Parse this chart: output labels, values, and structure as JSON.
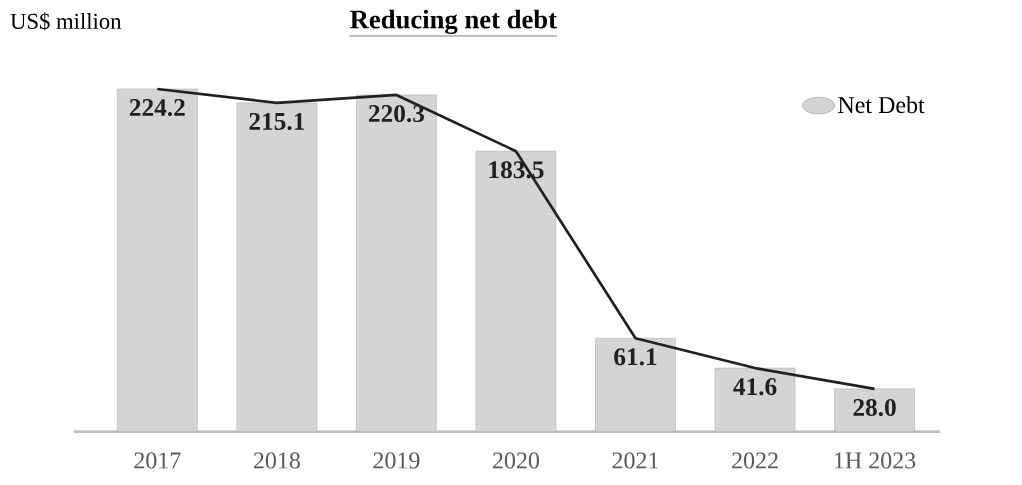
{
  "chart_data": {
    "type": "bar",
    "title": "Reducing net debt",
    "ylabel": "US$ million",
    "categories": [
      "2017",
      "2018",
      "2019",
      "2020",
      "2021",
      "2022",
      "1H 2023"
    ],
    "series": [
      {
        "name": "Net Debt",
        "color": "#d4d4d4",
        "values": [
          224.2,
          215.1,
          220.3,
          183.5,
          61.1,
          41.6,
          28.0
        ],
        "value_labels": [
          "224.2",
          "215.1",
          "220.3",
          "183.5",
          "61.1",
          "41.6",
          "28.0"
        ]
      },
      {
        "type": "line",
        "color": "#231f20",
        "values": [
          224.2,
          215.1,
          220.3,
          183.5,
          61.1,
          41.6,
          28.0
        ]
      }
    ],
    "legend": "top right"
  }
}
